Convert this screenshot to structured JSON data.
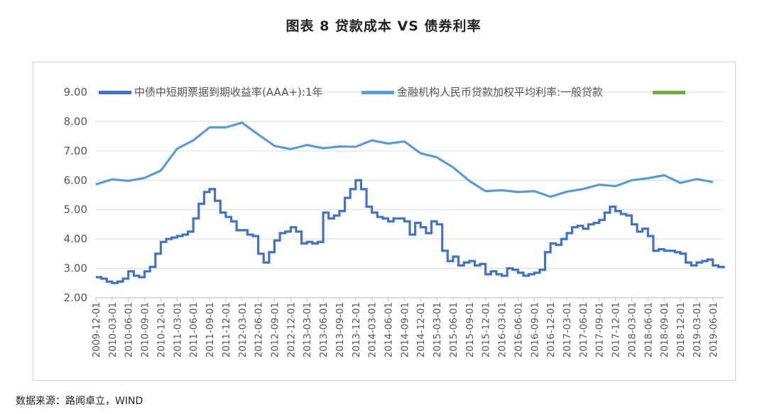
{
  "figure_title": "图表 8 贷款成本 VS 债券利率",
  "source_text": "数据来源：路闻卓立，WIND",
  "colors": {
    "series1": "#4472C4",
    "series2": "#5B9BD5",
    "series3": "#70AD47",
    "grid": "#d9d9d9",
    "axis": "#bfbfbf"
  },
  "chart_data": {
    "type": "line",
    "title": "",
    "xlabel": "",
    "ylabel": "",
    "ylim": [
      2.0,
      9.0
    ],
    "yticks": [
      "2.00",
      "3.00",
      "4.00",
      "5.00",
      "6.00",
      "7.00",
      "8.00",
      "9.00"
    ],
    "xticks": [
      "2009-12-01",
      "2010-03-01",
      "2010-06-01",
      "2010-09-01",
      "2010-12-01",
      "2011-03-01",
      "2011-06-01",
      "2011-09-01",
      "2011-12-01",
      "2012-03-01",
      "2012-06-01",
      "2012-09-01",
      "2012-12-01",
      "2013-03-01",
      "2013-06-01",
      "2013-09-01",
      "2013-12-01",
      "2014-03-01",
      "2014-06-01",
      "2014-09-01",
      "2014-12-01",
      "2015-03-01",
      "2015-06-01",
      "2015-09-01",
      "2015-12-01",
      "2016-03-01",
      "2016-06-01",
      "2016-09-01",
      "2016-12-01",
      "2017-03-01",
      "2017-06-01",
      "2017-09-01",
      "2017-12-01",
      "2018-03-01",
      "2018-06-01",
      "2018-09-01",
      "2018-12-01",
      "2019-03-01",
      "2019-06-01"
    ],
    "grid": true,
    "legend_position": "top",
    "series": [
      {
        "name": "中债中短期票据到期收益率(AAA+):1年",
        "x": [
          "2009-12-01",
          "2010-01-01",
          "2010-02-01",
          "2010-03-01",
          "2010-04-01",
          "2010-05-01",
          "2010-06-01",
          "2010-07-01",
          "2010-08-01",
          "2010-09-01",
          "2010-10-01",
          "2010-11-01",
          "2010-12-01",
          "2011-01-01",
          "2011-02-01",
          "2011-03-01",
          "2011-04-01",
          "2011-05-01",
          "2011-06-01",
          "2011-07-01",
          "2011-08-01",
          "2011-09-01",
          "2011-10-01",
          "2011-11-01",
          "2011-12-01",
          "2012-01-01",
          "2012-02-01",
          "2012-03-01",
          "2012-04-01",
          "2012-05-01",
          "2012-06-01",
          "2012-07-01",
          "2012-08-01",
          "2012-09-01",
          "2012-10-01",
          "2012-11-01",
          "2012-12-01",
          "2013-01-01",
          "2013-02-01",
          "2013-03-01",
          "2013-04-01",
          "2013-05-01",
          "2013-06-01",
          "2013-07-01",
          "2013-08-01",
          "2013-09-01",
          "2013-10-01",
          "2013-11-01",
          "2013-12-01",
          "2014-01-01",
          "2014-02-01",
          "2014-03-01",
          "2014-04-01",
          "2014-05-01",
          "2014-06-01",
          "2014-07-01",
          "2014-08-01",
          "2014-09-01",
          "2014-10-01",
          "2014-11-01",
          "2014-12-01",
          "2015-01-01",
          "2015-02-01",
          "2015-03-01",
          "2015-04-01",
          "2015-05-01",
          "2015-06-01",
          "2015-07-01",
          "2015-08-01",
          "2015-09-01",
          "2015-10-01",
          "2015-11-01",
          "2015-12-01",
          "2016-01-01",
          "2016-02-01",
          "2016-03-01",
          "2016-04-01",
          "2016-05-01",
          "2016-06-01",
          "2016-07-01",
          "2016-08-01",
          "2016-09-01",
          "2016-10-01",
          "2016-11-01",
          "2016-12-01",
          "2017-01-01",
          "2017-02-01",
          "2017-03-01",
          "2017-04-01",
          "2017-05-01",
          "2017-06-01",
          "2017-07-01",
          "2017-08-01",
          "2017-09-01",
          "2017-10-01",
          "2017-11-01",
          "2017-12-01",
          "2018-01-01",
          "2018-02-01",
          "2018-03-01",
          "2018-04-01",
          "2018-05-01",
          "2018-06-01",
          "2018-07-01",
          "2018-08-01",
          "2018-09-01",
          "2018-10-01",
          "2018-11-01",
          "2018-12-01",
          "2019-01-01",
          "2019-02-01",
          "2019-03-01",
          "2019-04-01",
          "2019-05-01",
          "2019-06-01",
          "2019-07-01",
          "2019-08-01"
        ],
        "values": [
          2.7,
          2.65,
          2.55,
          2.5,
          2.55,
          2.65,
          2.9,
          2.75,
          2.7,
          2.9,
          3.05,
          3.5,
          3.9,
          4.0,
          4.05,
          4.1,
          4.15,
          4.25,
          4.7,
          5.2,
          5.6,
          5.7,
          5.3,
          4.9,
          4.75,
          4.6,
          4.3,
          4.3,
          4.15,
          4.1,
          3.5,
          3.2,
          3.55,
          3.95,
          4.2,
          4.25,
          4.4,
          4.25,
          3.85,
          3.9,
          3.85,
          3.9,
          4.9,
          4.7,
          4.8,
          4.95,
          5.4,
          5.7,
          6.0,
          5.7,
          5.1,
          4.9,
          4.75,
          4.7,
          4.6,
          4.7,
          4.7,
          4.6,
          4.15,
          4.55,
          4.4,
          4.2,
          4.6,
          4.5,
          3.6,
          3.25,
          3.4,
          3.1,
          3.2,
          3.25,
          3.1,
          3.15,
          2.8,
          2.9,
          2.8,
          2.75,
          3.0,
          2.95,
          2.85,
          2.75,
          2.8,
          2.85,
          2.95,
          3.55,
          3.85,
          3.8,
          4.0,
          4.2,
          4.4,
          4.45,
          4.35,
          4.5,
          4.55,
          4.65,
          4.9,
          5.1,
          4.95,
          4.85,
          4.8,
          4.5,
          4.25,
          4.35,
          4.1,
          3.6,
          3.65,
          3.6,
          3.6,
          3.55,
          3.5,
          3.2,
          3.1,
          3.2,
          3.25,
          3.3,
          3.1,
          3.05,
          3.0
        ]
      },
      {
        "name": "金融机构人民币贷款加权平均利率:一般贷款",
        "x": [
          "2009-12-01",
          "2010-03-01",
          "2010-06-01",
          "2010-09-01",
          "2010-12-01",
          "2011-03-01",
          "2011-06-01",
          "2011-09-01",
          "2011-12-01",
          "2012-03-01",
          "2012-06-01",
          "2012-09-01",
          "2012-12-01",
          "2013-03-01",
          "2013-06-01",
          "2013-09-01",
          "2013-12-01",
          "2014-03-01",
          "2014-06-01",
          "2014-09-01",
          "2014-12-01",
          "2015-03-01",
          "2015-06-01",
          "2015-09-01",
          "2015-12-01",
          "2016-03-01",
          "2016-06-01",
          "2016-09-01",
          "2016-12-01",
          "2017-03-01",
          "2017-06-01",
          "2017-09-01",
          "2017-12-01",
          "2018-03-01",
          "2018-06-01",
          "2018-09-01",
          "2018-12-01",
          "2019-03-01",
          "2019-06-01"
        ],
        "values": [
          5.86,
          6.03,
          5.98,
          6.08,
          6.33,
          7.07,
          7.36,
          7.8,
          7.8,
          7.96,
          7.56,
          7.17,
          7.06,
          7.2,
          7.09,
          7.15,
          7.14,
          7.36,
          7.25,
          7.32,
          6.92,
          6.78,
          6.44,
          5.98,
          5.63,
          5.66,
          5.6,
          5.63,
          5.44,
          5.61,
          5.7,
          5.85,
          5.8,
          6.0,
          6.07,
          6.17,
          5.91,
          6.04,
          5.94
        ]
      },
      {
        "name": "",
        "x": [],
        "values": []
      }
    ]
  }
}
